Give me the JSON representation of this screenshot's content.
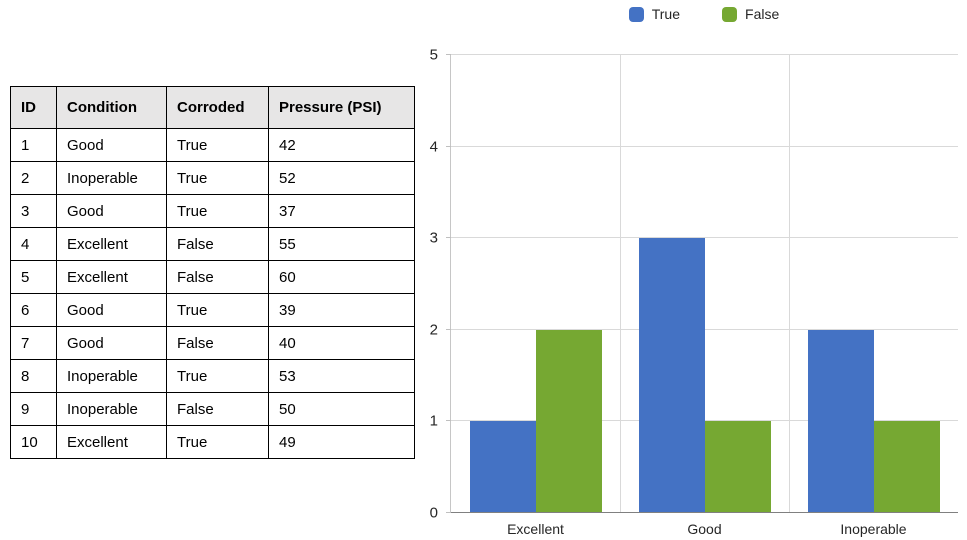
{
  "table": {
    "headers": [
      "ID",
      "Condition",
      "Corroded",
      "Pressure (PSI)"
    ],
    "rows": [
      [
        "1",
        "Good",
        "True",
        "42"
      ],
      [
        "2",
        "Inoperable",
        "True",
        "52"
      ],
      [
        "3",
        "Good",
        "True",
        "37"
      ],
      [
        "4",
        "Excellent",
        "False",
        "55"
      ],
      [
        "5",
        "Excellent",
        "False",
        "60"
      ],
      [
        "6",
        "Good",
        "True",
        "39"
      ],
      [
        "7",
        "Good",
        "False",
        "40"
      ],
      [
        "8",
        "Inoperable",
        "True",
        "53"
      ],
      [
        "9",
        "Inoperable",
        "False",
        "50"
      ],
      [
        "10",
        "Excellent",
        "True",
        "49"
      ]
    ]
  },
  "chart_data": {
    "type": "bar",
    "title": "",
    "categories": [
      "Excellent",
      "Good",
      "Inoperable"
    ],
    "series": [
      {
        "name": "True",
        "color": "#4472C4",
        "values": [
          1,
          3,
          2
        ]
      },
      {
        "name": "False",
        "color": "#76A832",
        "values": [
          2,
          1,
          1
        ]
      }
    ],
    "xlabel": "",
    "ylabel": "",
    "ylim": [
      0,
      5
    ],
    "yticks": [
      0,
      1,
      2,
      3,
      4,
      5
    ],
    "legend_position": "top",
    "grid": true
  }
}
